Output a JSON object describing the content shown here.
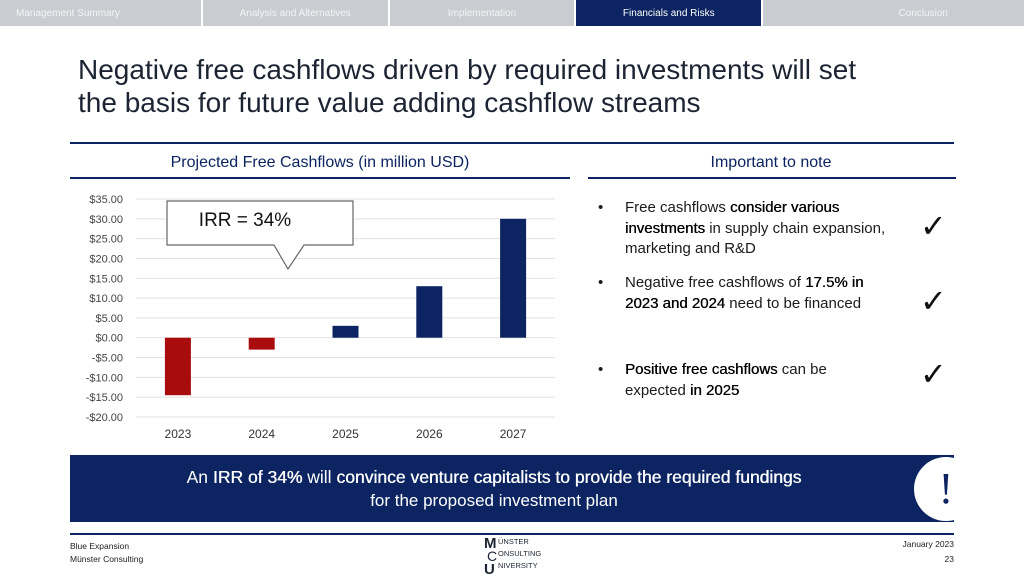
{
  "nav": {
    "tabs": [
      {
        "label": "Management Summary",
        "active": false
      },
      {
        "label": "Analysis and Alternatives",
        "active": false
      },
      {
        "label": "Implementation",
        "active": false
      },
      {
        "label": "Financials and Risks",
        "active": true
      },
      {
        "label": "Conclusion",
        "active": false
      }
    ]
  },
  "title": {
    "line1": "Negative free cashflows driven by required investments will set",
    "line2": "the basis for future value adding cashflow streams"
  },
  "left_section": {
    "heading": "Projected Free Cashflows (in million USD)"
  },
  "right_section": {
    "heading": "Important to note"
  },
  "callout": {
    "text": "IRR = 34%"
  },
  "chart_data": {
    "type": "bar",
    "title": "Projected Free Cashflows (in million USD)",
    "categories": [
      "2023",
      "2024",
      "2025",
      "2026",
      "2027"
    ],
    "values": [
      -14.5,
      -3,
      3,
      13,
      30
    ],
    "ylim": [
      -20,
      35
    ],
    "yticks": [
      35,
      30,
      25,
      20,
      15,
      10,
      5,
      0,
      -5,
      -10,
      -15,
      -20
    ],
    "ytick_labels": [
      "$35.00",
      "$30.00",
      "$25.00",
      "$20.00",
      "$15.00",
      "$10.00",
      "$5.00",
      "$0.00",
      "-$5.00",
      "-$10.00",
      "-$15.00",
      "-$20.00"
    ],
    "grid": true,
    "colors": {
      "positive": "#0c2461",
      "negative": "#a80c0c",
      "grid": "#e2e2e2"
    }
  },
  "notes": [
    {
      "parts": [
        {
          "t": "Free cashflows "
        },
        {
          "t": "consider various investments",
          "b": true
        },
        {
          "t": " in supply chain expansion, marketing and R&D"
        }
      ]
    },
    {
      "parts": [
        {
          "t": "Negative free cashflows of "
        },
        {
          "t": "17.5% in 2023 and 2024",
          "b": true
        },
        {
          "t": " need to be financed"
        }
      ]
    },
    {
      "parts": [
        {
          "t": "Positive free cashflows",
          "b": true
        },
        {
          "t": " can be expected "
        },
        {
          "t": "in 2025",
          "b": true
        }
      ]
    }
  ],
  "banner": {
    "line1_parts": [
      {
        "t": "An "
      },
      {
        "t": "IRR of 34%",
        "b": true
      },
      {
        "t": " will "
      },
      {
        "t": "convince venture capitalists to provide the required fundings",
        "b": true
      }
    ],
    "line2": "for the proposed investment plan",
    "icon": "exclamation-icon"
  },
  "footer": {
    "left_line1": "Blue Expansion",
    "left_line2": "Münster Consulting",
    "right_line1": "January 2023",
    "right_line2": "23"
  },
  "logo": {
    "line1": "ÜNSTER",
    "line2": "ONSULTING",
    "line3": "NIVERSITY",
    "big1": "M",
    "big2": "C",
    "big3": "U"
  },
  "colors": {
    "accent": "#0c2461",
    "nav_bg": "#c9ccd1"
  }
}
